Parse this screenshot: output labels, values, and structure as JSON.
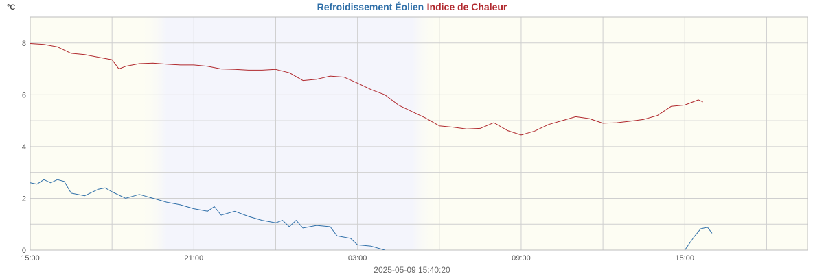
{
  "chart_data": {
    "type": "line",
    "title_parts": [
      {
        "text": "Refroidissement Éolien",
        "color": "#2f6fa8"
      },
      {
        "text": "Indice de Chaleur",
        "color": "#b0282d"
      }
    ],
    "ylabel": "°C",
    "ylim": [
      0,
      9
    ],
    "y_ticks": [
      "0",
      "2",
      "4",
      "6",
      "8"
    ],
    "x_start": "2025-05-08 15:00",
    "x_end": "2025-05-09 19:30",
    "x_ticks": [
      {
        "label": "15:00",
        "time": "2025-05-08 15:00"
      },
      {
        "label": "21:00",
        "time": "2025-05-08 21:00"
      },
      {
        "label": "03:00",
        "time": "2025-05-09 03:00"
      },
      {
        "label": "09:00",
        "time": "2025-05-09 09:00"
      },
      {
        "label": "15:00",
        "time": "2025-05-09 15:00"
      }
    ],
    "grid": true,
    "night_band": {
      "start": "2025-05-08 20:00",
      "end": "2025-05-09 05:00",
      "fade_start": "2025-05-08 19:00",
      "fade_end": "2025-05-09 06:00"
    },
    "colors": {
      "background_day": "#fdfdf3",
      "background_night": "#f4f5fc",
      "grid": "#cfcfcf"
    },
    "series": [
      {
        "name": "Indice de Chaleur",
        "color": "#b0282d",
        "points": [
          [
            "2025-05-08 15:00",
            7.98
          ],
          [
            "2025-05-08 15:30",
            7.95
          ],
          [
            "2025-05-08 16:00",
            7.85
          ],
          [
            "2025-05-08 16:30",
            7.6
          ],
          [
            "2025-05-08 17:00",
            7.55
          ],
          [
            "2025-05-08 17:30",
            7.45
          ],
          [
            "2025-05-08 18:00",
            7.35
          ],
          [
            "2025-05-08 18:15",
            7.0
          ],
          [
            "2025-05-08 18:30",
            7.1
          ],
          [
            "2025-05-08 19:00",
            7.2
          ],
          [
            "2025-05-08 19:30",
            7.22
          ],
          [
            "2025-05-08 20:00",
            7.18
          ],
          [
            "2025-05-08 20:30",
            7.15
          ],
          [
            "2025-05-08 21:00",
            7.15
          ],
          [
            "2025-05-08 21:30",
            7.1
          ],
          [
            "2025-05-08 22:00",
            7.0
          ],
          [
            "2025-05-08 22:30",
            6.98
          ],
          [
            "2025-05-08 23:00",
            6.95
          ],
          [
            "2025-05-08 23:30",
            6.95
          ],
          [
            "2025-05-09 00:00",
            6.98
          ],
          [
            "2025-05-09 00:30",
            6.85
          ],
          [
            "2025-05-09 01:00",
            6.55
          ],
          [
            "2025-05-09 01:30",
            6.6
          ],
          [
            "2025-05-09 02:00",
            6.72
          ],
          [
            "2025-05-09 02:30",
            6.68
          ],
          [
            "2025-05-09 03:00",
            6.45
          ],
          [
            "2025-05-09 03:30",
            6.2
          ],
          [
            "2025-05-09 04:00",
            6.0
          ],
          [
            "2025-05-09 04:30",
            5.6
          ],
          [
            "2025-05-09 05:00",
            5.35
          ],
          [
            "2025-05-09 05:30",
            5.1
          ],
          [
            "2025-05-09 06:00",
            4.8
          ],
          [
            "2025-05-09 06:30",
            4.75
          ],
          [
            "2025-05-09 07:00",
            4.68
          ],
          [
            "2025-05-09 07:30",
            4.7
          ],
          [
            "2025-05-09 08:00",
            4.92
          ],
          [
            "2025-05-09 08:30",
            4.62
          ],
          [
            "2025-05-09 09:00",
            4.45
          ],
          [
            "2025-05-09 09:30",
            4.6
          ],
          [
            "2025-05-09 10:00",
            4.85
          ],
          [
            "2025-05-09 10:30",
            5.0
          ],
          [
            "2025-05-09 11:00",
            5.15
          ],
          [
            "2025-05-09 11:30",
            5.08
          ],
          [
            "2025-05-09 12:00",
            4.9
          ],
          [
            "2025-05-09 12:30",
            4.92
          ],
          [
            "2025-05-09 13:00",
            4.98
          ],
          [
            "2025-05-09 13:30",
            5.05
          ],
          [
            "2025-05-09 14:00",
            5.2
          ],
          [
            "2025-05-09 14:30",
            5.55
          ],
          [
            "2025-05-09 15:00",
            5.6
          ],
          [
            "2025-05-09 15:30",
            5.8
          ],
          [
            "2025-05-09 15:40",
            5.72
          ]
        ]
      },
      {
        "name": "Refroidissement Éolien",
        "color": "#2f6fa8",
        "points": [
          [
            "2025-05-08 15:00",
            2.6
          ],
          [
            "2025-05-08 15:15",
            2.55
          ],
          [
            "2025-05-08 15:30",
            2.72
          ],
          [
            "2025-05-08 15:45",
            2.6
          ],
          [
            "2025-05-08 16:00",
            2.72
          ],
          [
            "2025-05-08 16:15",
            2.65
          ],
          [
            "2025-05-08 16:30",
            2.2
          ],
          [
            "2025-05-08 17:00",
            2.1
          ],
          [
            "2025-05-08 17:30",
            2.35
          ],
          [
            "2025-05-08 17:45",
            2.4
          ],
          [
            "2025-05-08 18:00",
            2.25
          ],
          [
            "2025-05-08 18:30",
            2.0
          ],
          [
            "2025-05-08 19:00",
            2.15
          ],
          [
            "2025-05-08 19:30",
            2.0
          ],
          [
            "2025-05-08 20:00",
            1.85
          ],
          [
            "2025-05-08 20:30",
            1.75
          ],
          [
            "2025-05-08 21:00",
            1.6
          ],
          [
            "2025-05-08 21:30",
            1.5
          ],
          [
            "2025-05-08 21:45",
            1.68
          ],
          [
            "2025-05-08 22:00",
            1.35
          ],
          [
            "2025-05-08 22:30",
            1.5
          ],
          [
            "2025-05-08 23:00",
            1.3
          ],
          [
            "2025-05-08 23:30",
            1.15
          ],
          [
            "2025-05-09 00:00",
            1.05
          ],
          [
            "2025-05-09 00:15",
            1.15
          ],
          [
            "2025-05-09 00:30",
            0.9
          ],
          [
            "2025-05-09 00:45",
            1.15
          ],
          [
            "2025-05-09 01:00",
            0.85
          ],
          [
            "2025-05-09 01:30",
            0.95
          ],
          [
            "2025-05-09 02:00",
            0.9
          ],
          [
            "2025-05-09 02:15",
            0.55
          ],
          [
            "2025-05-09 02:45",
            0.45
          ],
          [
            "2025-05-09 03:00",
            0.2
          ],
          [
            "2025-05-09 03:30",
            0.15
          ],
          [
            "2025-05-09 04:00",
            0.0
          ],
          [
            "2025-05-09 04:30",
            -0.3
          ],
          [
            "2025-05-09 04:45",
            -0.45
          ],
          [
            "2025-05-09 05:00",
            -0.7
          ],
          [
            "2025-05-09 12:00",
            -0.7
          ],
          [
            "2025-05-09 12:15",
            -0.65
          ],
          [
            "2025-05-09 12:30",
            -0.8
          ],
          [
            "2025-05-09 13:00",
            -0.8
          ],
          [
            "2025-05-09 13:30",
            -0.55
          ],
          [
            "2025-05-09 14:00",
            -0.3
          ],
          [
            "2025-05-09 14:30",
            -0.05
          ],
          [
            "2025-05-09 14:45",
            -0.4
          ],
          [
            "2025-05-09 15:00",
            0.0
          ],
          [
            "2025-05-09 15:20",
            0.5
          ],
          [
            "2025-05-09 15:35",
            0.82
          ],
          [
            "2025-05-09 15:50",
            0.88
          ],
          [
            "2025-05-09 16:00",
            0.65
          ]
        ]
      }
    ]
  },
  "timestamp": "2025-05-09 15:40:20"
}
